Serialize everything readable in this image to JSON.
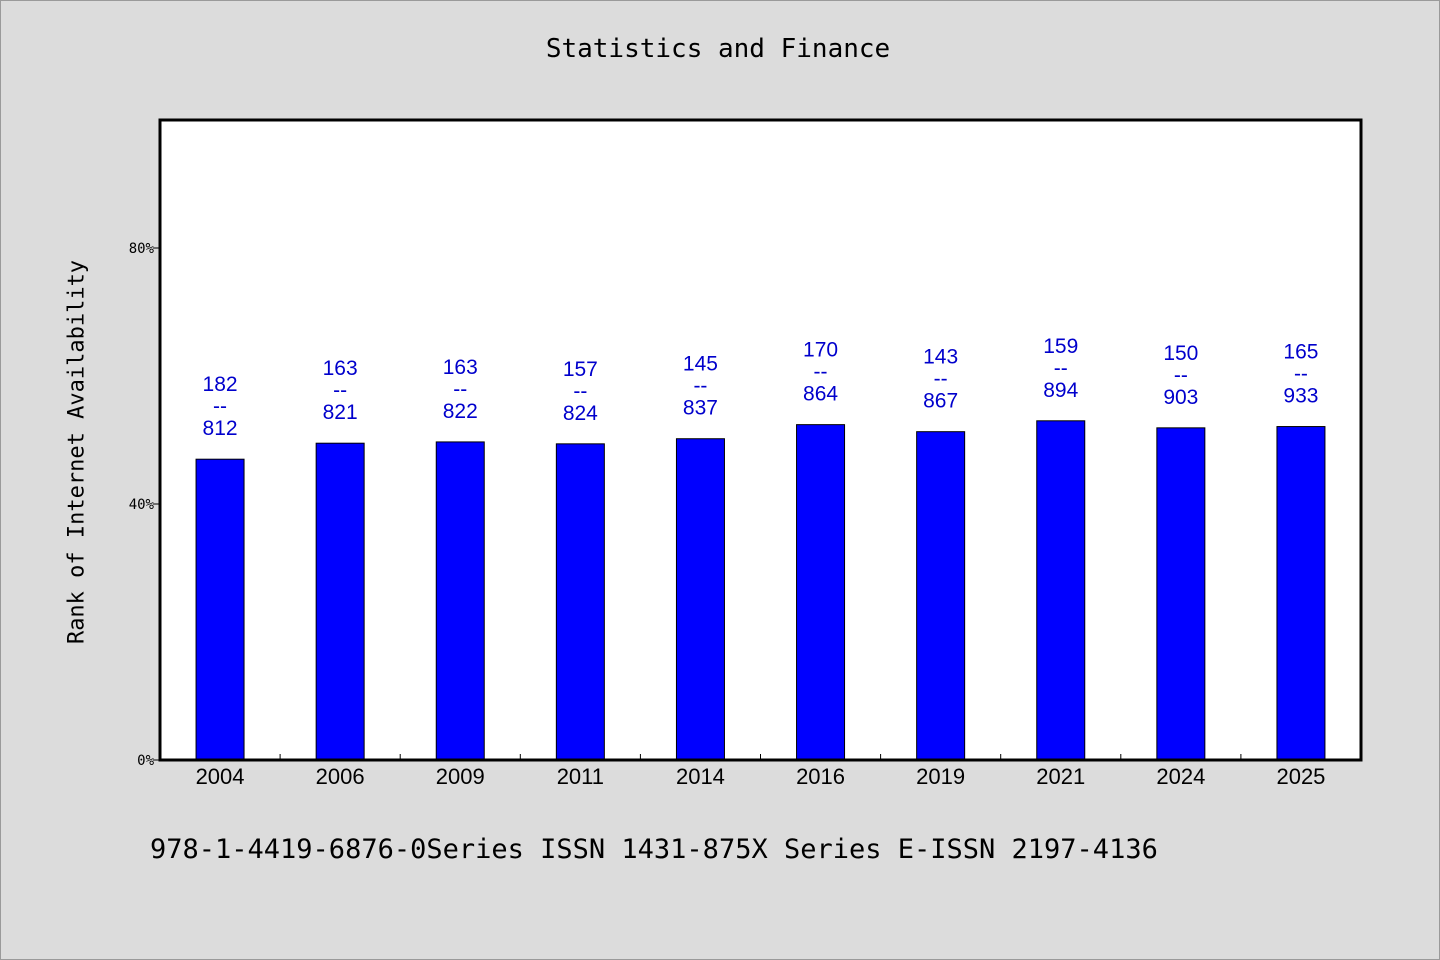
{
  "chart_data": {
    "type": "bar",
    "title": "Statistics and Finance",
    "xlabel": "",
    "ylabel": "Rank of Internet Availability",
    "ylim": [
      0,
      100
    ],
    "yticks": [
      {
        "value": 0,
        "label": "0%"
      },
      {
        "value": 40,
        "label": "40%"
      },
      {
        "value": 80,
        "label": "80%"
      }
    ],
    "categories": [
      "2004",
      "2006",
      "2009",
      "2011",
      "2014",
      "2016",
      "2019",
      "2021",
      "2024",
      "2025"
    ],
    "values": [
      47,
      49.5,
      49.7,
      49.4,
      50.2,
      52.4,
      51.3,
      53,
      51.9,
      52.1
    ],
    "data_labels": [
      {
        "top": "182",
        "mid": "--",
        "bottom": "812"
      },
      {
        "top": "163",
        "mid": "--",
        "bottom": "821"
      },
      {
        "top": "163",
        "mid": "--",
        "bottom": "822"
      },
      {
        "top": "157",
        "mid": "--",
        "bottom": "824"
      },
      {
        "top": "145",
        "mid": "--",
        "bottom": "837"
      },
      {
        "top": "170",
        "mid": "--",
        "bottom": "864"
      },
      {
        "top": "143",
        "mid": "--",
        "bottom": "867"
      },
      {
        "top": "159",
        "mid": "--",
        "bottom": "894"
      },
      {
        "top": "150",
        "mid": "--",
        "bottom": "903"
      },
      {
        "top": "165",
        "mid": "--",
        "bottom": "933"
      }
    ],
    "grid": false,
    "legend": "none",
    "colors": {
      "bar": "#0000ff",
      "bar_edge": "#000000",
      "label": "#0000cc",
      "plot_bg": "#ffffff",
      "page_bg": "#dcdcdc"
    }
  },
  "footer": "978-1-4419-6876-0Series ISSN 1431-875X Series E-ISSN 2197-4136"
}
